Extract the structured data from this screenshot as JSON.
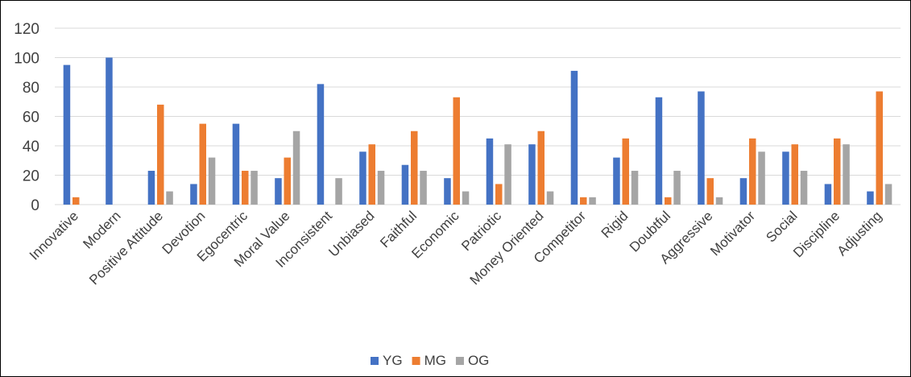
{
  "chart_data": {
    "type": "bar",
    "title": "",
    "xlabel": "",
    "ylabel": "",
    "ylim": [
      0,
      120
    ],
    "yticks": [
      "0",
      "20",
      "40",
      "60",
      "80",
      "100",
      "120"
    ],
    "grid": true,
    "legend_position": "bottom",
    "categories": [
      "Innovative",
      "Modern",
      "Positive Attitude",
      "Devotion",
      "Egocentric",
      "Moral Value",
      "Inconsistent",
      "Unbiased",
      "Faithful",
      "Economic",
      "Patriotic",
      "Money Oriented",
      "Competitor",
      "Rigid",
      "Doubtful",
      "Aggressive",
      "Motivator",
      "Social",
      "Discipline",
      "Adjusting"
    ],
    "series": [
      {
        "name": "YG",
        "color": "#4472C4",
        "values": [
          95,
          100,
          23,
          14,
          55,
          18,
          82,
          36,
          27,
          18,
          45,
          41,
          91,
          32,
          73,
          77,
          18,
          36,
          14,
          9
        ]
      },
      {
        "name": "MG",
        "color": "#ED7D31",
        "values": [
          5,
          0,
          68,
          55,
          23,
          32,
          0,
          41,
          50,
          73,
          14,
          50,
          5,
          45,
          5,
          18,
          45,
          41,
          45,
          77
        ]
      },
      {
        "name": "OG",
        "color": "#A5A5A5",
        "values": [
          0,
          0,
          9,
          32,
          23,
          50,
          18,
          23,
          23,
          9,
          41,
          9,
          5,
          23,
          23,
          5,
          36,
          23,
          41,
          14
        ]
      }
    ]
  }
}
